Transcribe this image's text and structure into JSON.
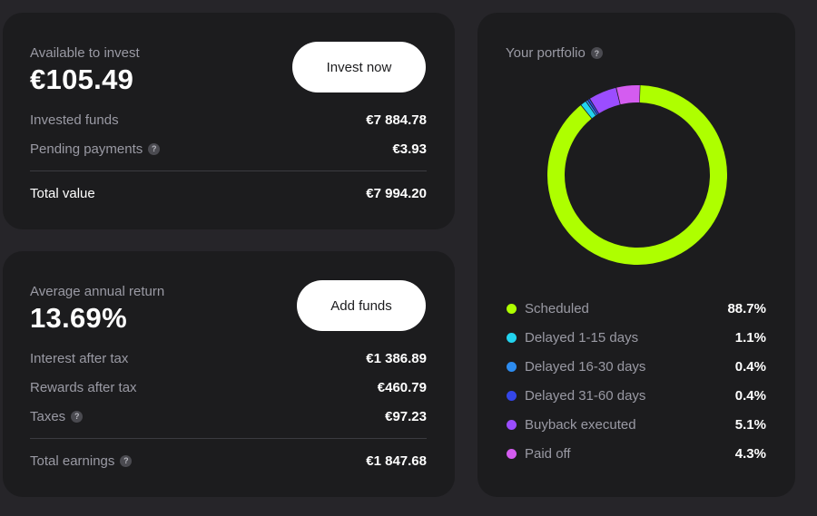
{
  "available": {
    "label": "Available to invest",
    "amount": "€105.49",
    "button": "Invest now",
    "rows": [
      {
        "label": "Invested funds",
        "value": "€7 884.78",
        "help": false
      },
      {
        "label": "Pending payments",
        "value": "€3.93",
        "help": true
      }
    ],
    "total": {
      "label": "Total value",
      "value": "€7 994.20"
    }
  },
  "returns": {
    "label": "Average annual return",
    "amount": "13.69%",
    "button": "Add funds",
    "rows": [
      {
        "label": "Interest after tax",
        "value": "€1 386.89",
        "help": false
      },
      {
        "label": "Rewards after tax",
        "value": "€460.79",
        "help": false
      },
      {
        "label": "Taxes",
        "value": "€97.23",
        "help": true
      }
    ],
    "total": {
      "label": "Total earnings",
      "value": "€1 847.68",
      "help": true
    }
  },
  "portfolio": {
    "title": "Your portfolio",
    "help_icon": "help-icon",
    "legend": [
      {
        "label": "Scheduled",
        "value": "88.7%",
        "percent": 88.7,
        "color": "#aeff00"
      },
      {
        "label": "Delayed 1-15 days",
        "value": "1.1%",
        "percent": 1.1,
        "color": "#22d3ee"
      },
      {
        "label": "Delayed 16-30 days",
        "value": "0.4%",
        "percent": 0.4,
        "color": "#2d8cf0"
      },
      {
        "label": "Delayed 31-60 days",
        "value": "0.4%",
        "percent": 0.4,
        "color": "#3446e8"
      },
      {
        "label": "Buyback executed",
        "value": "5.1%",
        "percent": 5.1,
        "color": "#9b4dff"
      },
      {
        "label": "Paid off",
        "value": "4.3%",
        "percent": 4.3,
        "color": "#d45cf0"
      }
    ]
  }
}
